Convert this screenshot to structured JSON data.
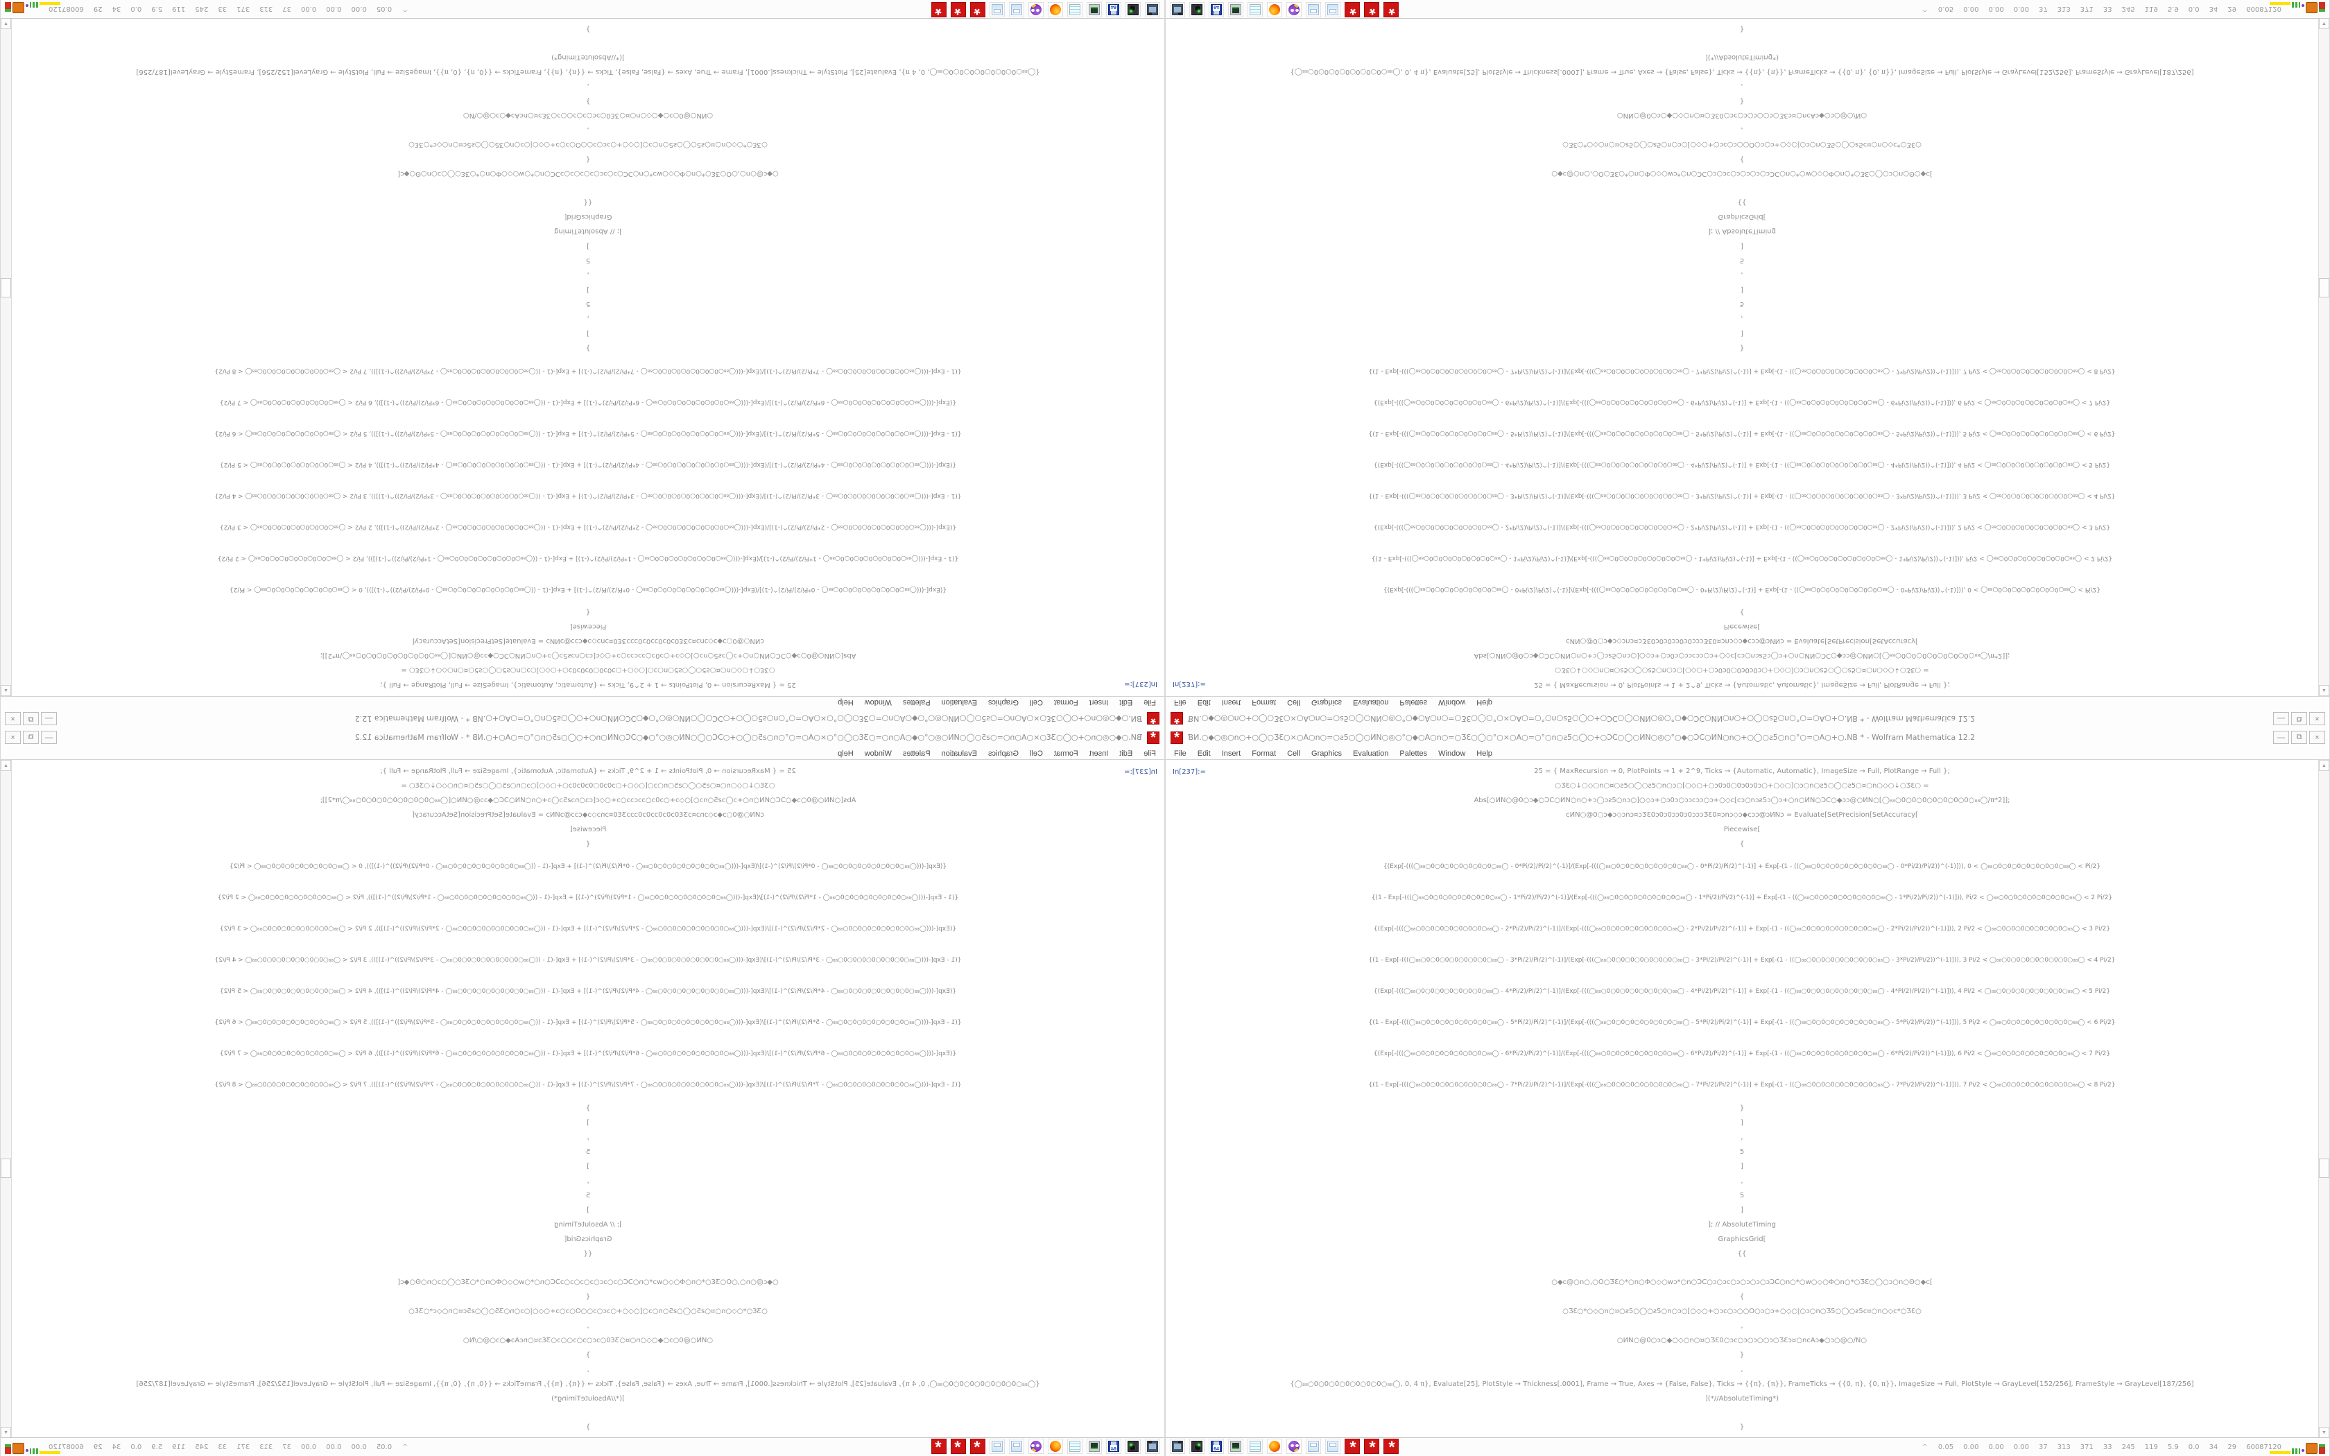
{
  "colors": {
    "mathematica_red": "#cf1414",
    "in_label_blue": "#35569e",
    "code_gray": "#8f8f8f",
    "applet_yellow": "#ffe000",
    "applet_green": "#3fae3f",
    "applet_orange": "#e07818",
    "applet_red": "#d03020",
    "applet_purple": "#8040c0"
  },
  "layout_note": "single 1680x1050 desktop screenshot tiled 2x2 with mirror flips (bottom-right original, bottom-left horizontal mirror, top-right vertical mirror, top-left rotated 180)",
  "window": {
    "app_icon": "mathematica-icon",
    "title": "ƁИ.○◆○◎○n○+○◯○ƷƐ○×○A○n○=○ƨ5○◯○ИN○◎○°○◆○A○n○=○ƷƐ○◯○°○×○A○=○°○n○ƨ5○◯○+○ƆC○◯○ИN○◎○°○◆○ƆC○ИN○n○+○◯○ƨ5○n○°○=○A○+○.NB * - Wolfram Mathematica 12.2",
    "controls": [
      {
        "g": "—",
        "n": "minimize-button"
      },
      {
        "g": "⧉",
        "n": "restore-button"
      },
      {
        "g": "×",
        "n": "close-button"
      }
    ],
    "menu": [
      {
        "label": "File"
      },
      {
        "label": "Edit"
      },
      {
        "label": "Insert"
      },
      {
        "label": "Format"
      },
      {
        "label": "Cell"
      },
      {
        "label": "Graphics"
      },
      {
        "label": "Evaluation"
      },
      {
        "label": "Palettes"
      },
      {
        "label": "Window"
      },
      {
        "label": "Help"
      }
    ],
    "scrollbar": {
      "up": "▲",
      "down": "▼"
    }
  },
  "notebook": {
    "in_label": "In[237]:=",
    "lines": [
      {
        "t": "25 = {  MaxRecursion → 0, PlotPoints → 1 + 2^9, Ticks → {Automatic, Automatic}, ImageSize → Full, PlotRange → Full  };",
        "k": ""
      },
      {
        "t": "○ƷƐ○↓○◇○n○¤○ƨ5○◯○ƨ5○n○ɔ○[○◇○+○ɔ0ɔ0○0ɔ0ɔ0ɔ○+○◇○]○ɔ○n○ƨ5○◯○ƨ5○¤○n○◇○↓○ƷƐ○  =",
        "k": ""
      },
      {
        "t": "Abs[○ИN○@0○ɔ◆○ƆC○ИN○n○+ɔ◯ɔƨ5○nɔ○]○◇ɔ+○ɔ0ɔ○ɔɔcɔɔ○ɔ+○◇c[cɔ○nɔƨ5ɔ◯ɔ+○n○ИN○ƆC○◆ɔɔ@○ИN○[◯₈₈○0○0○0○0○0○0○0○₈₈◯/π*2]];",
        "k": ""
      },
      {
        "t": "cИN○@0○ɔ◆ɔ◇ɔnɔ¤ɔƷƐ0ɔ0ɔ0ɔɔ0ɔ0ɔɔɔƷƐ0¤ɔnɔ◇ɔ◆cɔɔ@ɔИNɔ = Evaluate[SetPrecision[SetAccuracy[",
        "k": ""
      },
      {
        "t": "Piecewise[",
        "k": ""
      },
      {
        "t": "{",
        "k": ""
      },
      {
        "t": "{(Exp[-(((◯₈₈○0○0○0○0○0○0○0○₈₈◯ - 0*Pi/2)/Pi/2)^(-1)]/(Exp[-(((◯₈₈○0○0○0○0○0○0○0○₈₈◯ - 0*Pi/2)/Pi/2)^(-1)] + Exp[-(1 - ((◯₈₈○0○0○0○0○0○0○0○₈₈◯ - 0*Pi/2)/Pi/2))^(-1)])), 0 < ◯₈₈○0○0○0○0○0○0○0○₈₈◯ < Pi/2}",
        "k": "row"
      },
      {
        "t": "{(1 - Exp[-(((◯₈₈○0○0○0○0○0○0○0○₈₈◯ - 1*Pi/2)/Pi/2)^(-1)]/(Exp[-(((◯₈₈○0○0○0○0○0○0○0○₈₈◯ - 1*Pi/2)/Pi/2)^(-1)] + Exp[-(1 - ((◯₈₈○0○0○0○0○0○0○0○₈₈◯ - 1*Pi/2)/Pi/2))^(-1)])), Pi/2 < ◯₈₈○0○0○0○0○0○0○0○₈₈◯ < 2 Pi/2}",
        "k": "row"
      },
      {
        "t": "{(Exp[-(((◯₈₈○0○0○0○0○0○0○0○₈₈◯ - 2*Pi/2)/Pi/2)^(-1)]/(Exp[-(((◯₈₈○0○0○0○0○0○0○0○₈₈◯ - 2*Pi/2)/Pi/2)^(-1)] + Exp[-(1 - ((◯₈₈○0○0○0○0○0○0○0○₈₈◯ - 2*Pi/2)/Pi/2))^(-1)])), 2 Pi/2 < ◯₈₈○0○0○0○0○0○0○0○₈₈◯ < 3 Pi/2}",
        "k": "row"
      },
      {
        "t": "{(1 - Exp[-(((◯₈₈○0○0○0○0○0○0○0○₈₈◯ - 3*Pi/2)/Pi/2)^(-1)]/(Exp[-(((◯₈₈○0○0○0○0○0○0○0○₈₈◯ - 3*Pi/2)/Pi/2)^(-1)] + Exp[-(1 - ((◯₈₈○0○0○0○0○0○0○0○₈₈◯ - 3*Pi/2)/Pi/2))^(-1)])), 3 Pi/2 < ◯₈₈○0○0○0○0○0○0○0○₈₈◯ < 4 Pi/2}",
        "k": "row"
      },
      {
        "t": "{(Exp[-(((◯₈₈○0○0○0○0○0○0○0○₈₈◯ - 4*Pi/2)/Pi/2)^(-1)]/(Exp[-(((◯₈₈○0○0○0○0○0○0○0○₈₈◯ - 4*Pi/2)/Pi/2)^(-1)] + Exp[-(1 - ((◯₈₈○0○0○0○0○0○0○0○₈₈◯ - 4*Pi/2)/Pi/2))^(-1)])), 4 Pi/2 < ◯₈₈○0○0○0○0○0○0○0○₈₈◯ < 5 Pi/2}",
        "k": "row"
      },
      {
        "t": "{(1 - Exp[-(((◯₈₈○0○0○0○0○0○0○0○₈₈◯ - 5*Pi/2)/Pi/2)^(-1)]/(Exp[-(((◯₈₈○0○0○0○0○0○0○0○₈₈◯ - 5*Pi/2)/Pi/2)^(-1)] + Exp[-(1 - ((◯₈₈○0○0○0○0○0○0○0○₈₈◯ - 5*Pi/2)/Pi/2))^(-1)])), 5 Pi/2 < ◯₈₈○0○0○0○0○0○0○0○₈₈◯ < 6 Pi/2}",
        "k": "row"
      },
      {
        "t": "{(Exp[-(((◯₈₈○0○0○0○0○0○0○0○₈₈◯ - 6*Pi/2)/Pi/2)^(-1)]/(Exp[-(((◯₈₈○0○0○0○0○0○0○0○₈₈◯ - 6*Pi/2)/Pi/2)^(-1)] + Exp[-(1 - ((◯₈₈○0○0○0○0○0○0○0○₈₈◯ - 6*Pi/2)/Pi/2))^(-1)])), 6 Pi/2 < ◯₈₈○0○0○0○0○0○0○0○₈₈◯ < 7 Pi/2}",
        "k": "row"
      },
      {
        "t": "{(1 - Exp[-(((◯₈₈○0○0○0○0○0○0○0○₈₈◯ - 7*Pi/2)/Pi/2)^(-1)]/(Exp[-(((◯₈₈○0○0○0○0○0○0○0○₈₈◯ - 7*Pi/2)/Pi/2)^(-1)] + Exp[-(1 - ((◯₈₈○0○0○0○0○0○0○0○₈₈◯ - 7*Pi/2)/Pi/2))^(-1)])), 7 Pi/2 < ◯₈₈○0○0○0○0○0○0○0○₈₈◯ < 8 Pi/2}",
        "k": "row"
      },
      {
        "t": "}",
        "k": ""
      },
      {
        "t": "]",
        "k": ""
      },
      {
        "t": ",",
        "k": ""
      },
      {
        "t": "5",
        "k": ""
      },
      {
        "t": "]",
        "k": ""
      },
      {
        "t": ",",
        "k": ""
      },
      {
        "t": "5",
        "k": ""
      },
      {
        "t": "]",
        "k": ""
      },
      {
        "t": "]; // AbsoluteTiming",
        "k": ""
      },
      {
        "t": "GraphicsGrid[",
        "k": ""
      },
      {
        "t": "{{",
        "k": ""
      },
      {
        "t": "○◆c@○n○,○O○ƷƐ○*○n○Φ○◇○wɔ*○n○ƆC○ɔ○ɔc○ɔ○ɔ○ɔ○ɔƆC○n○*○w○◇○Φ○n○*○ƷƐ○◯○ɔ○n○ʘ○◆c[",
        "k": "mt"
      },
      {
        "t": "{",
        "k": ""
      },
      {
        "t": "○ƷƐ○*○◇○n○¤○ƨ5○◯○ƨ5○n○ɔ○[○◇○+○ɔc○ɔ○○O○ɔ○ɔ+○◇○|○ɔ○n○Ʒ5○◯○ƨ5c¤○n○◇c*○ƷƐ○",
        "k": ""
      },
      {
        "t": ",",
        "k": ""
      },
      {
        "t": "○ИN○@0○ɔ○◆○◇○n○¤○ƷƐ0○ɔc○ɔ○ɔ○○ɔ○ƷƐɔ¤○ncAɔ◆○ɔ○@○/N○",
        "k": ""
      },
      {
        "t": "}",
        "k": ""
      },
      {
        "t": ",",
        "k": ""
      },
      {
        "t": "{◯₈₈○0○0○0○0○0○0○0○₈₈◯, 0, 4 π}, Evaluate[25], PlotStyle → Thickness[.0001], Frame → True, Axes → {False, False}, Ticks → {{π}, {π}}, FrameTicks → {{0, π}, {0, π}}, ImageSize → Full, PlotStyle → GrayLevel[152/256], FrameStyle → GrayLevel[187/256]",
        "k": ""
      },
      {
        "t": "](*//AbsoluteTiming*)",
        "k": ""
      },
      {
        "t": "}",
        "k": "mt"
      }
    ]
  },
  "taskbar": {
    "icons": [
      {
        "k": "shot",
        "n": "screenshot-tool-icon",
        "label": ""
      },
      {
        "k": "disk",
        "n": "disk-utility-icon",
        "label": ""
      },
      {
        "k": "floppy",
        "n": "floppy-64-icon",
        "label": "64"
      },
      {
        "k": "sysmon",
        "n": "system-monitor-icon",
        "label": ""
      },
      {
        "k": "notes",
        "n": "notepad-icon",
        "label": ""
      },
      {
        "k": "firefox",
        "n": "firefox-icon",
        "label": ""
      },
      {
        "k": "mascot",
        "n": "drawing-app-icon",
        "label": ""
      },
      {
        "k": "calc",
        "n": "calculator-icon",
        "label": ""
      },
      {
        "k": "calc",
        "n": "calculator-icon-2",
        "label": ""
      },
      {
        "k": "mma",
        "n": "mathematica-icon",
        "label": ""
      },
      {
        "k": "mma",
        "n": "mathematica-icon-2",
        "label": ""
      },
      {
        "k": "mma",
        "n": "mathematica-icon-3",
        "label": ""
      }
    ],
    "stats_caret": "^",
    "stats": [
      "0.05",
      "0.00",
      "0.00",
      "0.00",
      "37",
      "313",
      "371",
      "33",
      "245",
      "119",
      "5.9",
      "0.0",
      "34",
      "29",
      "60087120"
    ]
  }
}
